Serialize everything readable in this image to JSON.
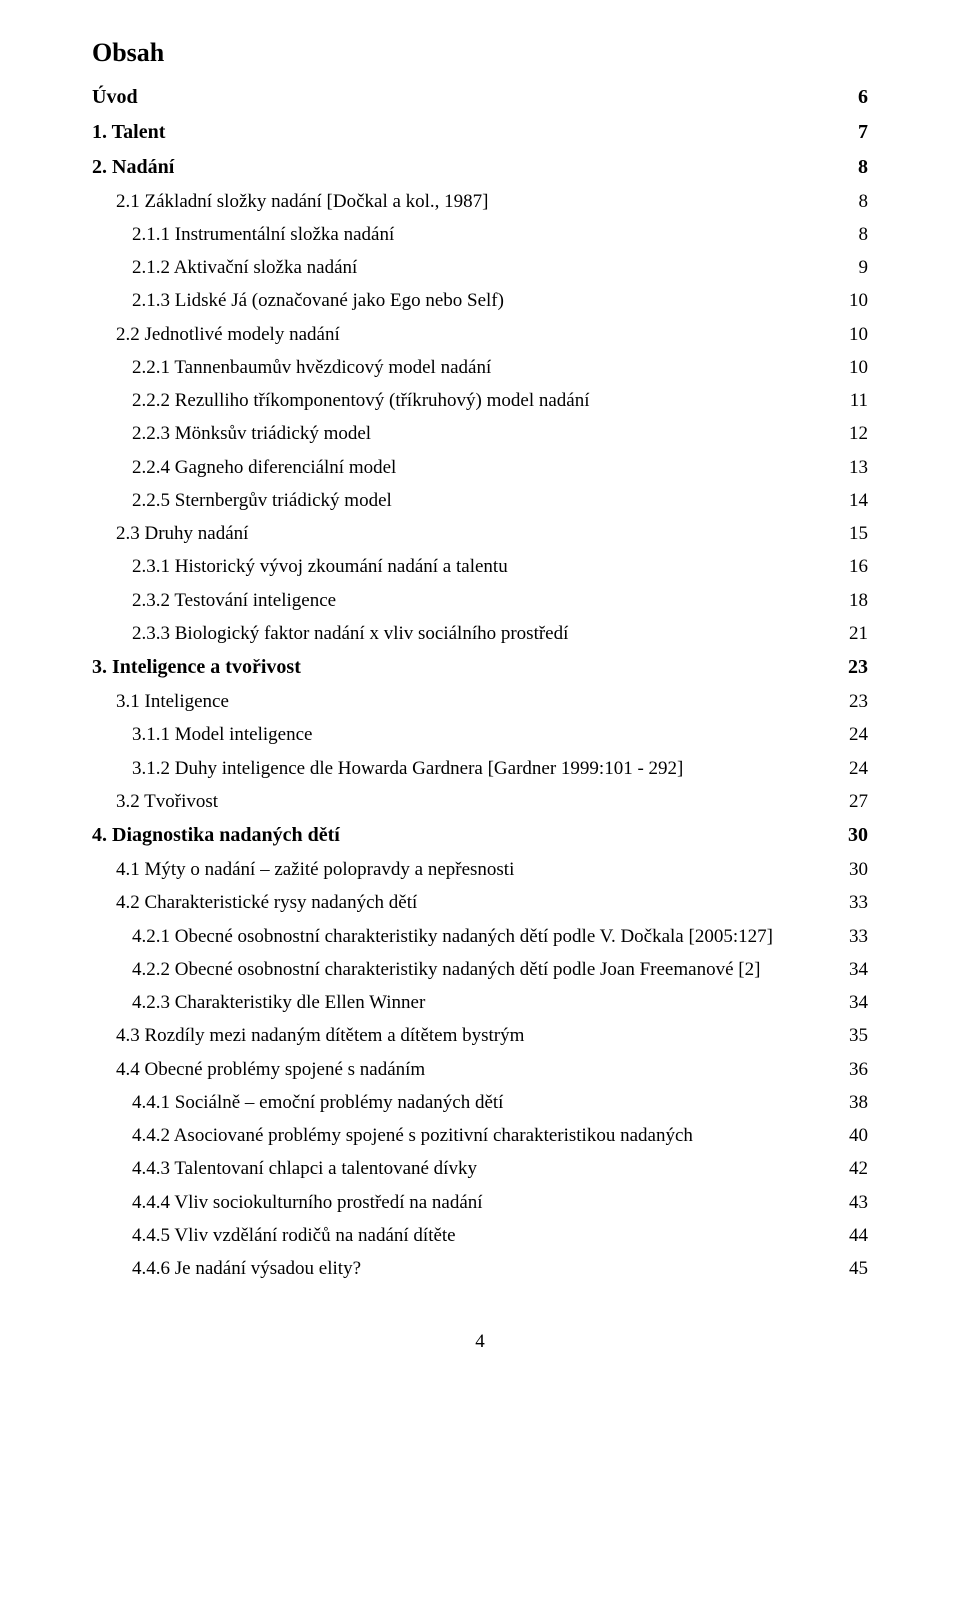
{
  "title": "Obsah",
  "page_number": "4",
  "font": {
    "family": "Times New Roman",
    "body_size_pt": 12,
    "title_size_pt": 16
  },
  "colors": {
    "text": "#000000",
    "background": "#ffffff"
  },
  "entries": [
    {
      "label": "Úvod",
      "page": "6",
      "level": 0,
      "bold": true
    },
    {
      "label": "1. Talent",
      "page": "7",
      "level": 0,
      "bold": true
    },
    {
      "label": "2. Nadání",
      "page": "8",
      "level": 0,
      "bold": true
    },
    {
      "label": "2.1 Základní složky nadání [Dočkal a kol., 1987]",
      "page": "8",
      "level": 1,
      "bold": false
    },
    {
      "label": "2.1.1 Instrumentální složka nadání",
      "page": "8",
      "level": 2,
      "bold": false
    },
    {
      "label": "2.1.2 Aktivační složka nadání",
      "page": "9",
      "level": 2,
      "bold": false
    },
    {
      "label": "2.1.3 Lidské Já (označované jako Ego nebo Self)",
      "page": "10",
      "level": 2,
      "bold": false
    },
    {
      "label": "2.2 Jednotlivé modely nadání",
      "page": "10",
      "level": 1,
      "bold": false
    },
    {
      "label": "2.2.1 Tannenbaumův hvězdicový model nadání",
      "page": "10",
      "level": 2,
      "bold": false
    },
    {
      "label": "2.2.2 Rezulliho tříkomponentový (tříkruhový) model nadání",
      "page": "11",
      "level": 2,
      "bold": false
    },
    {
      "label": "2.2.3 Mönksův triádický model",
      "page": "12",
      "level": 2,
      "bold": false
    },
    {
      "label": "2.2.4 Gagneho diferenciální model",
      "page": "13",
      "level": 2,
      "bold": false
    },
    {
      "label": "2.2.5 Sternbergův triádický model",
      "page": "14",
      "level": 2,
      "bold": false
    },
    {
      "label": "2.3 Druhy nadání",
      "page": "15",
      "level": 1,
      "bold": false
    },
    {
      "label": "2.3.1 Historický vývoj zkoumání nadání a talentu",
      "page": "16",
      "level": 2,
      "bold": false
    },
    {
      "label": "2.3.2 Testování inteligence",
      "page": "18",
      "level": 2,
      "bold": false
    },
    {
      "label": "2.3.3 Biologický faktor nadání x vliv sociálního prostředí",
      "page": "21",
      "level": 2,
      "bold": false
    },
    {
      "label": "3. Inteligence a tvořivost",
      "page": "23",
      "level": 0,
      "bold": true
    },
    {
      "label": "3.1 Inteligence",
      "page": "23",
      "level": 1,
      "bold": false
    },
    {
      "label": "3.1.1 Model inteligence",
      "page": "24",
      "level": 2,
      "bold": false
    },
    {
      "label": "3.1.2 Duhy inteligence dle Howarda Gardnera [Gardner 1999:101 - 292]",
      "page": "24",
      "level": 2,
      "bold": false
    },
    {
      "label": "3.2 Tvořivost",
      "page": "27",
      "level": 1,
      "bold": false
    },
    {
      "label": "4. Diagnostika nadaných dětí",
      "page": "30",
      "level": 0,
      "bold": true
    },
    {
      "label": "4.1 Mýty o nadání – zažité polopravdy a nepřesnosti",
      "page": "30",
      "level": 1,
      "bold": false
    },
    {
      "label": "4.2 Charakteristické rysy nadaných dětí",
      "page": "33",
      "level": 1,
      "bold": false
    },
    {
      "label": "4.2.1 Obecné osobnostní charakteristiky nadaných dětí podle V. Dočkala [2005:127]",
      "page": "33",
      "level": 2,
      "bold": false
    },
    {
      "label": "4.2.2 Obecné osobnostní charakteristiky nadaných dětí podle Joan Freemanové [2]",
      "page": "34",
      "level": 2,
      "bold": false
    },
    {
      "label": "4.2.3 Charakteristiky dle Ellen Winner",
      "page": "34",
      "level": 2,
      "bold": false
    },
    {
      "label": "4.3 Rozdíly mezi nadaným dítětem a dítětem bystrým",
      "page": "35",
      "level": 1,
      "bold": false
    },
    {
      "label": "4.4 Obecné problémy spojené s nadáním",
      "page": "36",
      "level": 1,
      "bold": false
    },
    {
      "label": "4.4.1 Sociálně – emoční problémy nadaných dětí",
      "page": "38",
      "level": 2,
      "bold": false
    },
    {
      "label": "4.4.2 Asociované problémy spojené s pozitivní charakteristikou nadaných",
      "page": "40",
      "level": 2,
      "bold": false
    },
    {
      "label": "4.4.3 Talentovaní chlapci a talentované dívky",
      "page": "42",
      "level": 2,
      "bold": false
    },
    {
      "label": "4.4.4 Vliv sociokulturního prostředí na nadání",
      "page": "43",
      "level": 2,
      "bold": false
    },
    {
      "label": "4.4.5 Vliv vzdělání rodičů na nadání dítěte",
      "page": "44",
      "level": 2,
      "bold": false
    },
    {
      "label": "4.4.6 Je nadání výsadou elity?",
      "page": "45",
      "level": 2,
      "bold": false
    }
  ]
}
